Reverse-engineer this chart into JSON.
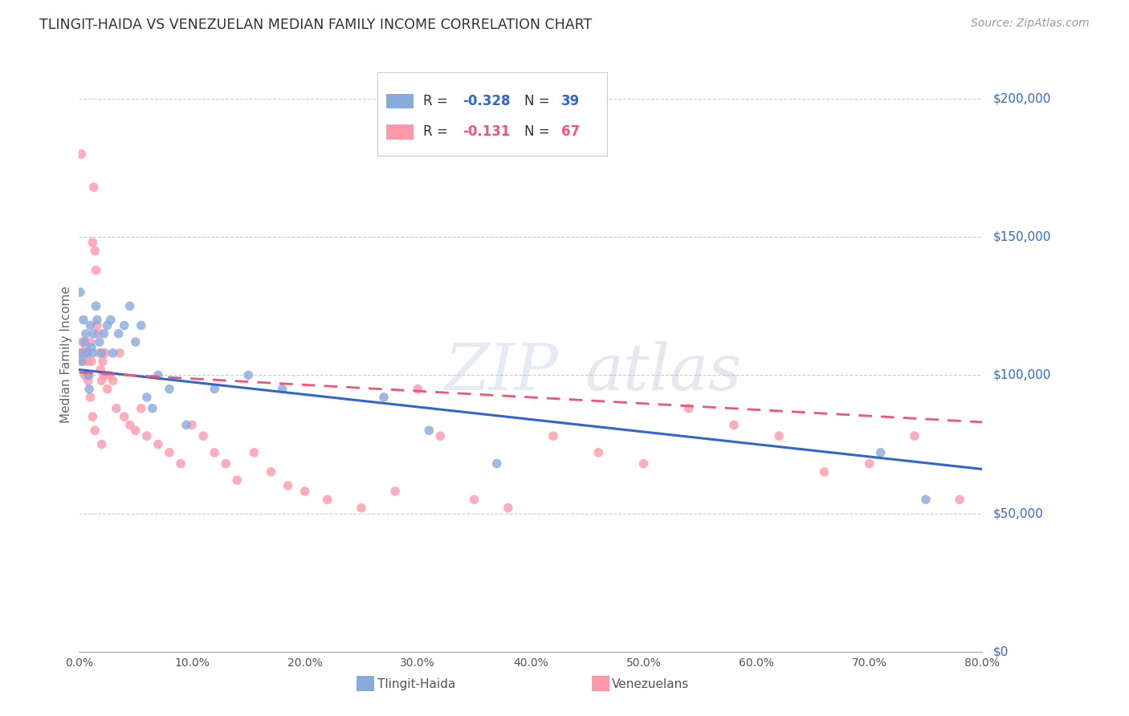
{
  "title": "TLINGIT-HAIDA VS VENEZUELAN MEDIAN FAMILY INCOME CORRELATION CHART",
  "source": "Source: ZipAtlas.com",
  "ylabel": "Median Family Income",
  "ytick_values": [
    0,
    50000,
    100000,
    150000,
    200000
  ],
  "ytick_labels": [
    "$0",
    "$50,000",
    "$100,000",
    "$150,000",
    "$200,000"
  ],
  "xlim": [
    0.0,
    0.8
  ],
  "ylim": [
    0,
    215000
  ],
  "color_blue": "#88AADD",
  "color_pink": "#FF99AA",
  "color_blue_dark": "#3366CC",
  "color_pink_dark": "#EE5577",
  "color_blue_label": "#3366CC",
  "color_grid": "#CCCCCC",
  "tlingit_line_y0": 102000,
  "tlingit_line_y1": 66000,
  "venezuelan_line_y0": 101000,
  "venezuelan_line_y1": 83000,
  "tlingit_x": [
    0.001,
    0.002,
    0.003,
    0.004,
    0.005,
    0.006,
    0.007,
    0.008,
    0.009,
    0.01,
    0.011,
    0.012,
    0.013,
    0.015,
    0.016,
    0.018,
    0.02,
    0.022,
    0.025,
    0.028,
    0.03,
    0.035,
    0.04,
    0.045,
    0.05,
    0.055,
    0.06,
    0.065,
    0.07,
    0.08,
    0.095,
    0.12,
    0.15,
    0.18,
    0.27,
    0.31,
    0.37,
    0.71,
    0.75
  ],
  "tlingit_y": [
    130000,
    105000,
    108000,
    120000,
    112000,
    115000,
    108000,
    100000,
    95000,
    118000,
    110000,
    108000,
    115000,
    125000,
    120000,
    112000,
    108000,
    115000,
    118000,
    120000,
    108000,
    115000,
    118000,
    125000,
    112000,
    118000,
    92000,
    88000,
    100000,
    95000,
    82000,
    95000,
    100000,
    95000,
    92000,
    80000,
    68000,
    72000,
    55000
  ],
  "venezuelan_x": [
    0.001,
    0.002,
    0.003,
    0.004,
    0.005,
    0.006,
    0.007,
    0.008,
    0.009,
    0.01,
    0.011,
    0.012,
    0.013,
    0.014,
    0.015,
    0.016,
    0.017,
    0.018,
    0.019,
    0.02,
    0.021,
    0.022,
    0.023,
    0.025,
    0.027,
    0.03,
    0.033,
    0.036,
    0.04,
    0.045,
    0.05,
    0.055,
    0.06,
    0.07,
    0.08,
    0.09,
    0.1,
    0.11,
    0.12,
    0.13,
    0.14,
    0.155,
    0.17,
    0.185,
    0.2,
    0.22,
    0.25,
    0.28,
    0.3,
    0.32,
    0.35,
    0.38,
    0.42,
    0.46,
    0.5,
    0.54,
    0.58,
    0.62,
    0.66,
    0.7,
    0.74,
    0.78,
    0.008,
    0.01,
    0.012,
    0.014,
    0.02
  ],
  "venezuelan_y": [
    108000,
    180000,
    112000,
    105000,
    100000,
    110000,
    108000,
    105000,
    100000,
    112000,
    105000,
    148000,
    168000,
    145000,
    138000,
    118000,
    115000,
    108000,
    102000,
    98000,
    105000,
    100000,
    108000,
    95000,
    100000,
    98000,
    88000,
    108000,
    85000,
    82000,
    80000,
    88000,
    78000,
    75000,
    72000,
    68000,
    82000,
    78000,
    72000,
    68000,
    62000,
    72000,
    65000,
    60000,
    58000,
    55000,
    52000,
    58000,
    95000,
    78000,
    55000,
    52000,
    78000,
    72000,
    68000,
    88000,
    82000,
    78000,
    65000,
    68000,
    78000,
    55000,
    98000,
    92000,
    85000,
    80000,
    75000
  ]
}
